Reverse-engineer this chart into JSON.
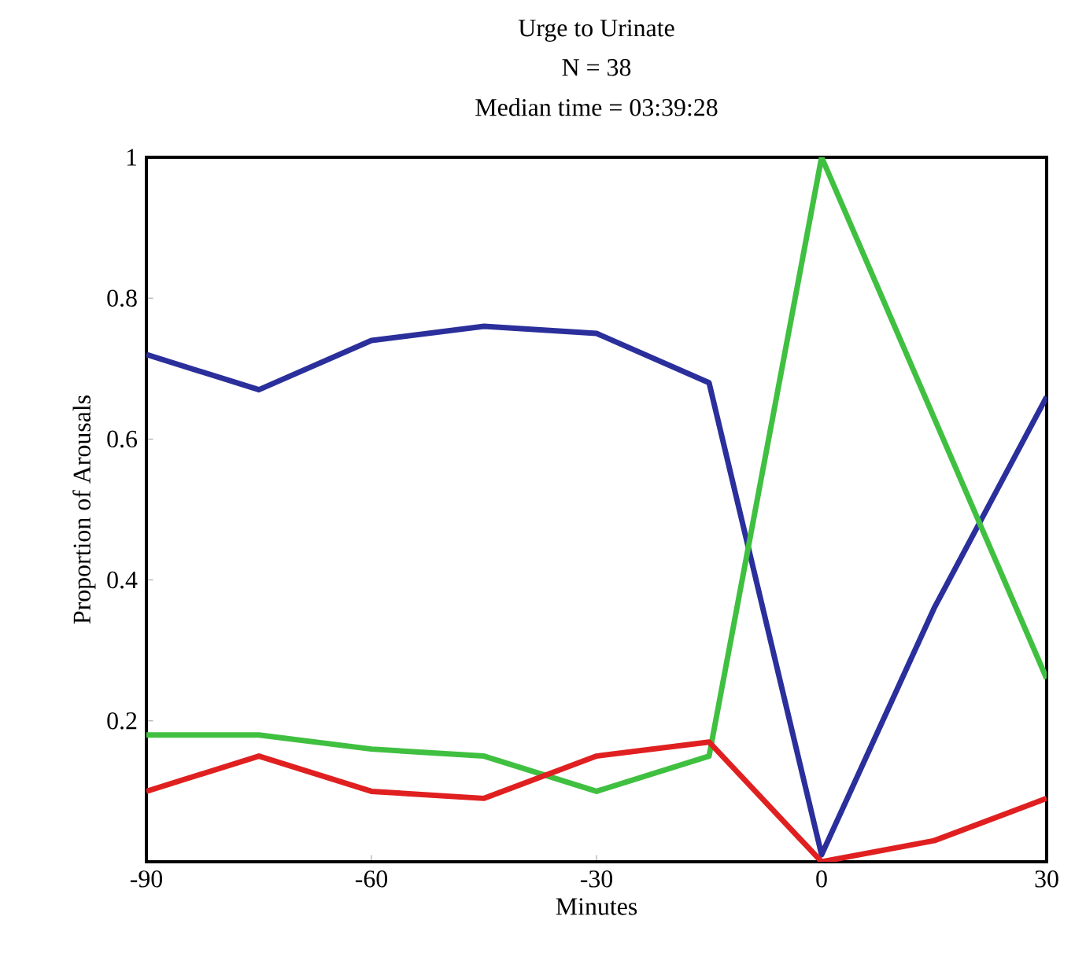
{
  "chart_data": {
    "type": "line",
    "title": "Urge to Urinate",
    "subtitle": "N = 38",
    "annotations": [
      "Median time = 03:39:28"
    ],
    "xlabel": "Minutes",
    "ylabel": "Proportion of Arousals",
    "x": [
      -90,
      -75,
      -60,
      -45,
      -30,
      -15,
      0,
      15,
      30
    ],
    "series": [
      {
        "color": "#2b2f9b",
        "values": [
          0.72,
          0.67,
          0.74,
          0.76,
          0.75,
          0.68,
          0.01,
          0.36,
          0.66
        ]
      },
      {
        "color": "#40c040",
        "values": [
          0.18,
          0.18,
          0.16,
          0.15,
          0.1,
          0.15,
          1.0,
          0.63,
          0.26
        ]
      },
      {
        "color": "#e02020",
        "values": [
          0.1,
          0.15,
          0.1,
          0.09,
          0.15,
          0.17,
          0.0,
          0.03,
          0.09
        ]
      }
    ],
    "xlim": [
      -90,
      30
    ],
    "ylim": [
      0,
      1
    ],
    "xticks": [
      -90,
      -60,
      -30,
      0,
      30
    ],
    "yticks": [
      0.2,
      0.4,
      0.6,
      0.8,
      1
    ],
    "grid": false,
    "marker": "none",
    "line_style": "solid"
  }
}
